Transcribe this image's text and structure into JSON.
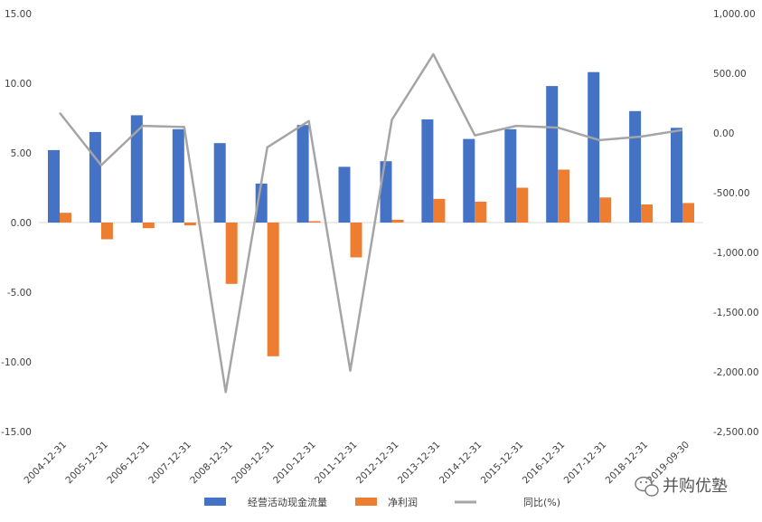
{
  "chart_data": {
    "type": "bar",
    "categories": [
      "2004-12-31",
      "2005-12-31",
      "2006-12-31",
      "2007-12-31",
      "2008-12-31",
      "2009-12-31",
      "2010-12-31",
      "2011-12-31",
      "2012-12-31",
      "2013-12-31",
      "2014-12-31",
      "2015-12-31",
      "2016-12-31",
      "2017-12-31",
      "2018-12-31",
      "2019-09-30"
    ],
    "series": [
      {
        "name": "经营活动现金流量",
        "kind": "bar",
        "axis": "left",
        "color": "#4472C4",
        "values": [
          5.2,
          6.5,
          7.7,
          6.7,
          5.7,
          2.8,
          7.0,
          4.0,
          4.4,
          7.4,
          6.0,
          6.7,
          9.8,
          10.8,
          8.0,
          6.8
        ]
      },
      {
        "name": "净利润",
        "kind": "bar",
        "axis": "left",
        "color": "#ED7D31",
        "values": [
          0.7,
          -1.2,
          -0.4,
          -0.2,
          -4.4,
          -9.6,
          0.1,
          -2.5,
          0.2,
          1.7,
          1.5,
          2.5,
          3.8,
          1.8,
          1.3,
          1.4
        ]
      },
      {
        "name": "同比(%)",
        "kind": "line",
        "axis": "right",
        "color": "#A5A5A5",
        "values": [
          170,
          -270,
          60,
          50,
          -2170,
          -120,
          100,
          -1990,
          110,
          660,
          -20,
          60,
          45,
          -60,
          -30,
          25
        ]
      }
    ],
    "left_axis": {
      "min": -15,
      "max": 15,
      "ticks": [
        "15.00",
        "10.00",
        "5.00",
        "0.00",
        "-5.00",
        "-10.00",
        "-15.00"
      ]
    },
    "right_axis": {
      "min": -2500,
      "max": 1000,
      "ticks": [
        "1,000.00",
        "500.00",
        "0.00",
        "-500.00",
        "-1,000.00",
        "-1,500.00",
        "-2,000.00",
        "-2,500.00"
      ]
    },
    "grid": false,
    "legend_position": "bottom"
  },
  "watermark": {
    "text": "并购优塾",
    "icon": "wechat-icon"
  }
}
